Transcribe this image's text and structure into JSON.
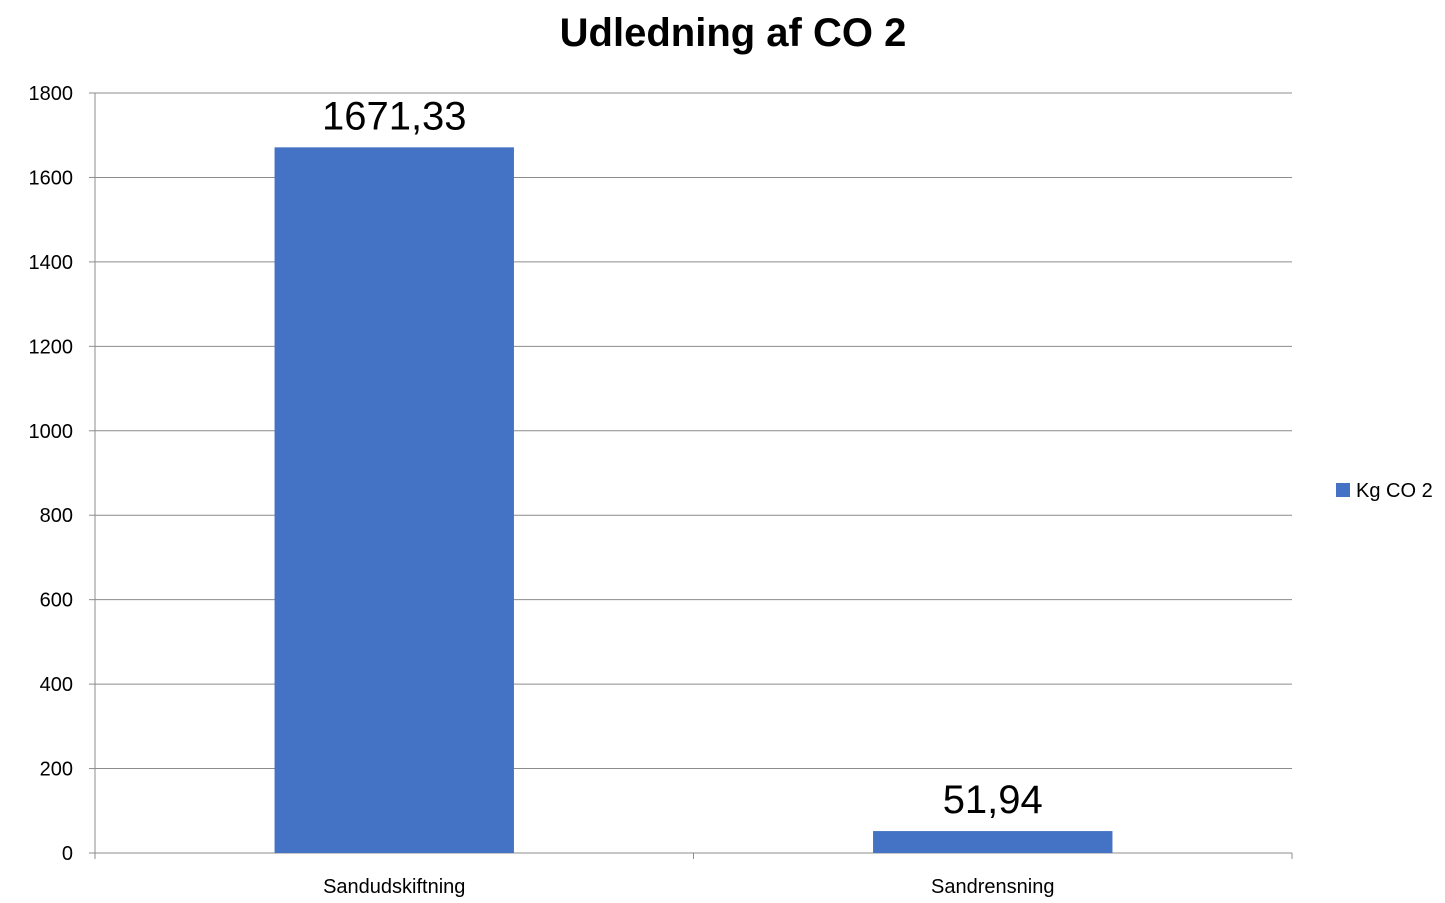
{
  "chart_data": {
    "type": "bar",
    "title": "Udledning af CO 2",
    "categories": [
      "Sandudskiftning",
      "Sandrensning"
    ],
    "series": [
      {
        "name": "Kg CO 2",
        "values": [
          1671.33,
          51.94
        ],
        "color": "#4472C4"
      }
    ],
    "data_labels": [
      "1671,33",
      "51,94"
    ],
    "ylim": [
      0,
      1800
    ],
    "yticks": [
      0,
      200,
      400,
      600,
      800,
      1000,
      1200,
      1400,
      1600,
      1800
    ],
    "xlabel": "",
    "ylabel": "",
    "grid": true,
    "legend_position": "right"
  },
  "colors": {
    "bar": "#4472C4",
    "grid": "#8c8c8c",
    "axis": "#8c8c8c"
  }
}
